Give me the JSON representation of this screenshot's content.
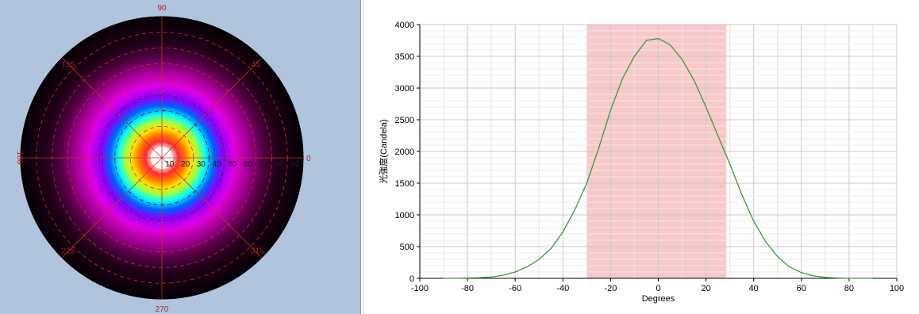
{
  "polar_plot": {
    "angle_labels": [
      {
        "text": "90",
        "deg": 90
      },
      {
        "text": "45",
        "deg": 45
      },
      {
        "text": "0",
        "deg": 0
      },
      {
        "text": "315",
        "deg": 315
      },
      {
        "text": "270",
        "deg": 270
      },
      {
        "text": "225",
        "deg": 225
      },
      {
        "text": "180",
        "deg": 180
      },
      {
        "text": "135",
        "deg": 135
      }
    ],
    "ring_labels": [
      "10",
      "20",
      "30",
      "40",
      "50",
      "60",
      "70",
      "80",
      "90"
    ],
    "colors": {
      "background": "#b0c4de",
      "grid": "#c03030",
      "dashed_ring": "#111111"
    }
  },
  "chart_data": {
    "type": "line",
    "title": "",
    "xlabel": "Degrees",
    "ylabel": "光強度(Candela)",
    "xlim": [
      -100,
      100
    ],
    "ylim": [
      0,
      4000
    ],
    "x_ticks": [
      "-100",
      "-80",
      "-60",
      "-40",
      "-20",
      "0",
      "20",
      "40",
      "60",
      "80",
      "100"
    ],
    "y_ticks": [
      "0",
      "500",
      "1000",
      "1500",
      "2000",
      "2500",
      "3000",
      "3500",
      "4000"
    ],
    "grid": true,
    "highlight_band": {
      "x_start": -30,
      "x_end": 28.5,
      "color": "#f9c8c8"
    },
    "series": [
      {
        "color": "#3a9a3a",
        "x": [
          -90,
          -85,
          -80,
          -75,
          -70,
          -65,
          -60,
          -55,
          -50,
          -45,
          -40,
          -35,
          -30,
          -25,
          -20,
          -15,
          -10,
          -5,
          0,
          5,
          10,
          15,
          20,
          25,
          30,
          35,
          40,
          45,
          50,
          55,
          60,
          65,
          70,
          75,
          80,
          85,
          90
        ],
        "y": [
          0,
          0,
          5,
          10,
          20,
          50,
          100,
          180,
          300,
          470,
          730,
          1080,
          1500,
          2050,
          2650,
          3150,
          3500,
          3750,
          3780,
          3680,
          3450,
          3120,
          2700,
          2250,
          1800,
          1320,
          900,
          580,
          340,
          180,
          90,
          40,
          15,
          5,
          0,
          0,
          0
        ]
      }
    ]
  }
}
